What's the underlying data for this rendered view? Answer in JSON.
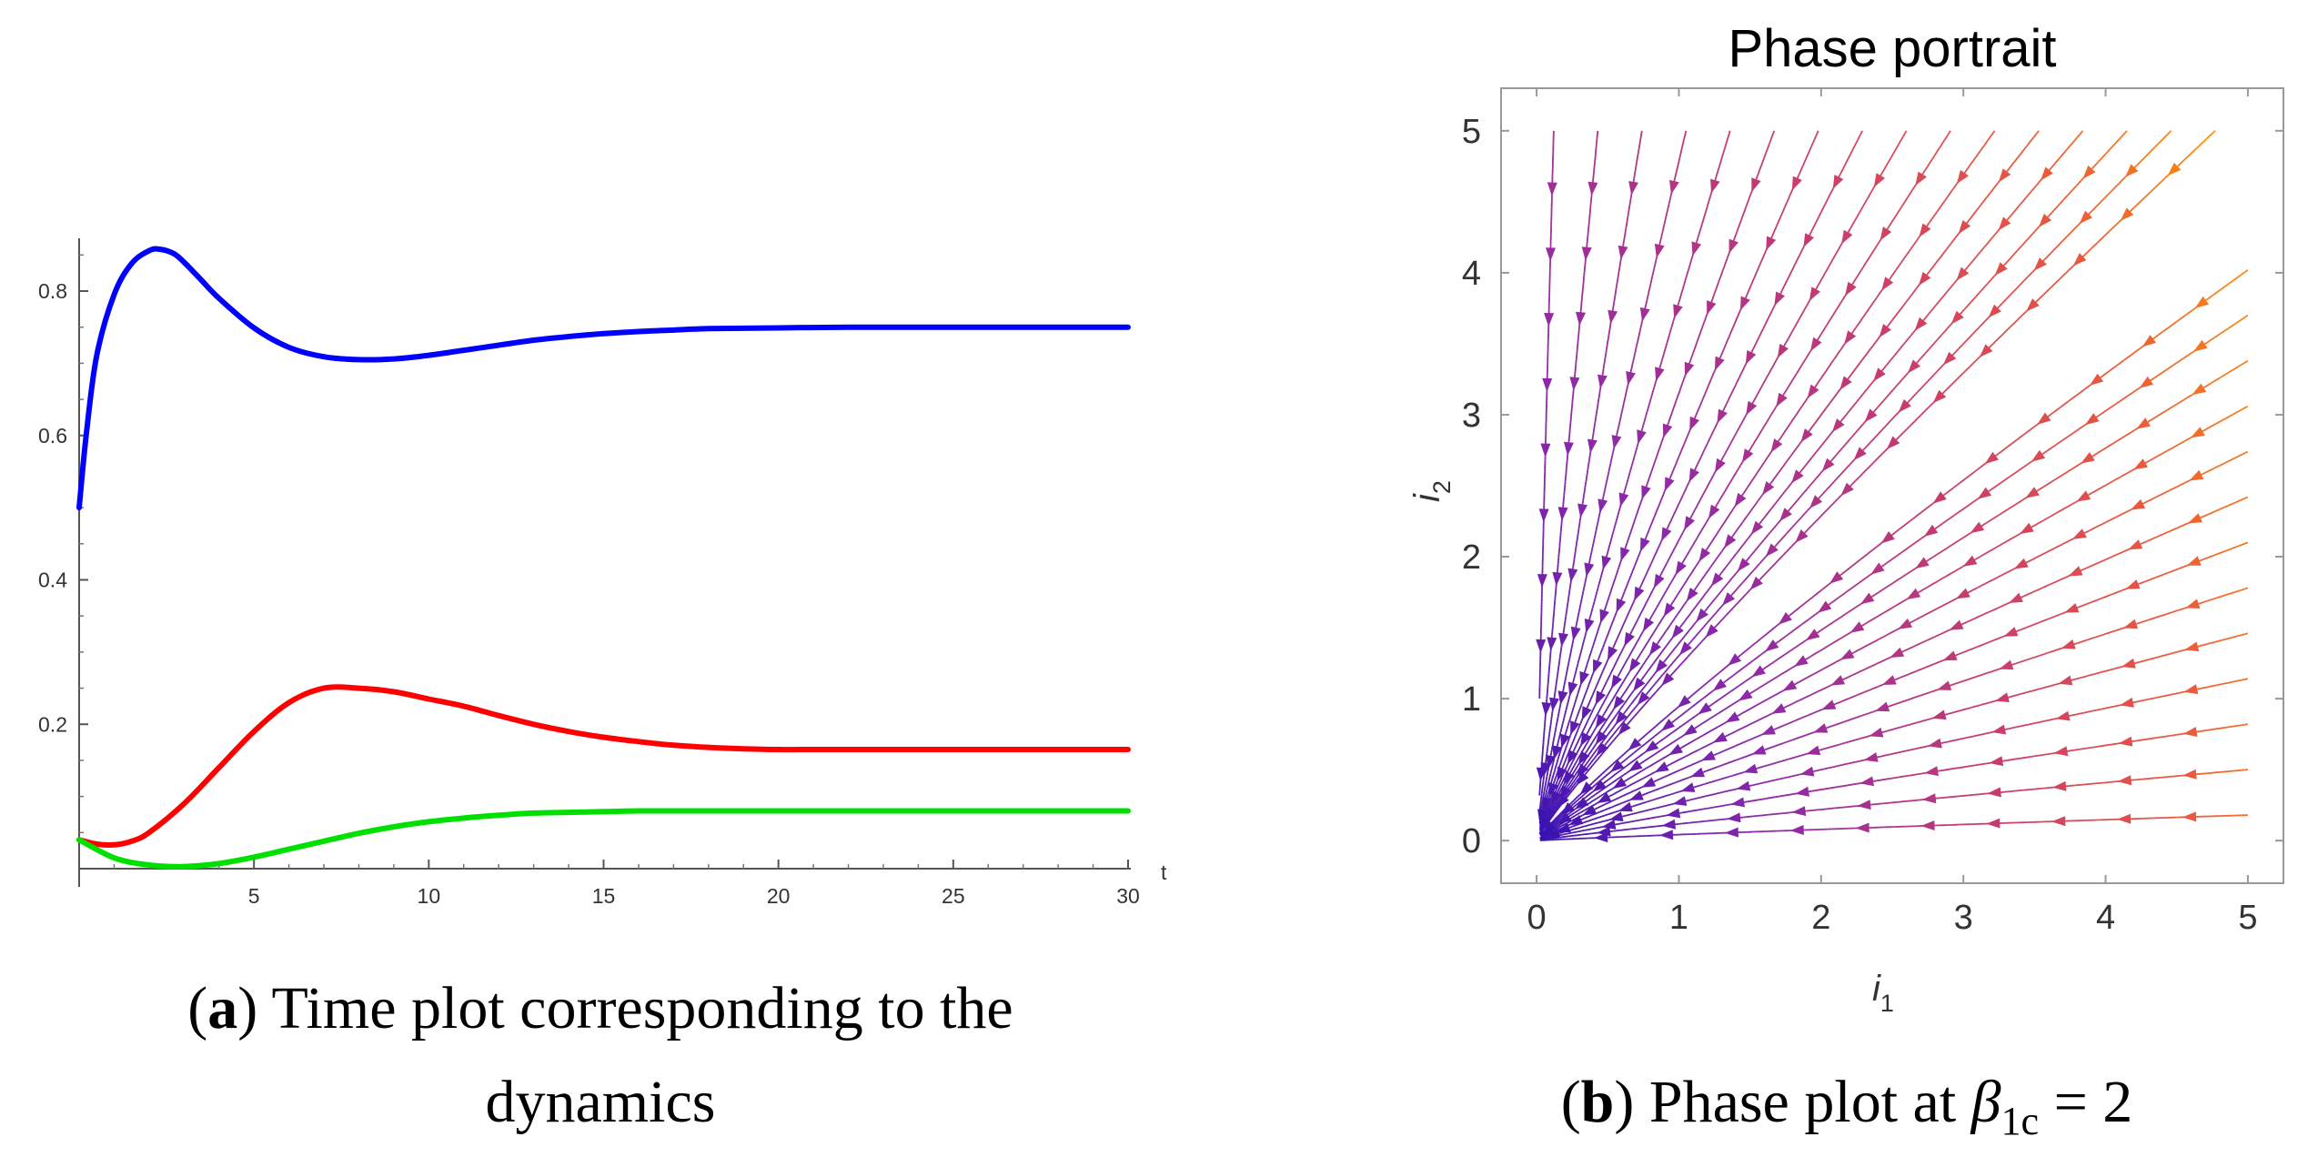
{
  "chart_data": [
    {
      "type": "line",
      "panel": "a",
      "title": "",
      "xlabel": "t",
      "ylabel": "",
      "xlim": [
        0,
        30
      ],
      "ylim": [
        0,
        0.9
      ],
      "xticks": [
        5,
        10,
        15,
        20,
        25,
        30
      ],
      "yticks": [
        0.2,
        0.4,
        0.6,
        0.8
      ],
      "series": [
        {
          "name": "blue",
          "color": "#0000ff",
          "x": [
            0,
            0.2,
            0.5,
            1,
            1.5,
            2,
            2.3,
            2.7,
            3,
            3.5,
            4,
            5,
            6,
            7,
            8,
            9,
            10,
            11,
            12,
            13,
            14,
            15,
            16,
            17,
            18,
            20,
            22,
            25,
            30
          ],
          "y": [
            0.5,
            0.6,
            0.71,
            0.795,
            0.838,
            0.856,
            0.858,
            0.852,
            0.84,
            0.815,
            0.79,
            0.749,
            0.722,
            0.709,
            0.705,
            0.706,
            0.711,
            0.718,
            0.725,
            0.732,
            0.737,
            0.741,
            0.744,
            0.746,
            0.748,
            0.749,
            0.75,
            0.75,
            0.75
          ]
        },
        {
          "name": "red",
          "color": "#ff0000",
          "x": [
            0,
            0.5,
            1,
            1.5,
            2,
            3,
            4,
            5,
            6,
            7,
            8,
            9,
            10,
            11,
            12,
            13,
            14,
            15,
            16,
            17,
            18,
            19,
            20,
            21,
            22,
            25,
            30
          ],
          "y": [
            0.04,
            0.034,
            0.033,
            0.038,
            0.05,
            0.09,
            0.14,
            0.19,
            0.23,
            0.25,
            0.25,
            0.245,
            0.235,
            0.225,
            0.212,
            0.2,
            0.19,
            0.182,
            0.176,
            0.171,
            0.168,
            0.166,
            0.165,
            0.165,
            0.165,
            0.165,
            0.165
          ]
        },
        {
          "name": "green",
          "color": "#00e000",
          "x": [
            0,
            1,
            2,
            3,
            4,
            5,
            6,
            7,
            8,
            9,
            10,
            11,
            12,
            13,
            14,
            15,
            16,
            17,
            18,
            19,
            20,
            21,
            22,
            25,
            30
          ],
          "y": [
            0.04,
            0.015,
            0.005,
            0.003,
            0.007,
            0.016,
            0.027,
            0.038,
            0.049,
            0.058,
            0.065,
            0.07,
            0.074,
            0.077,
            0.078,
            0.079,
            0.08,
            0.08,
            0.08,
            0.08,
            0.08,
            0.08,
            0.08,
            0.08,
            0.08
          ]
        }
      ]
    },
    {
      "type": "stream",
      "panel": "b",
      "title": "Phase portrait",
      "xlabel": "i1",
      "ylabel": "i2",
      "xlim": [
        -0.25,
        5.25
      ],
      "ylim": [
        -0.3,
        5.3
      ],
      "xticks": [
        0,
        1,
        2,
        3,
        4,
        5
      ],
      "yticks": [
        0,
        1,
        2,
        3,
        4,
        5
      ],
      "field": "di1/dt = -i1*(1 + 0.5*i1), di2/dt = -0.9*i2*(1 + 0.5*i1)",
      "color_low": "#2a0fb4",
      "color_high": "#ff9a00"
    }
  ],
  "captions": {
    "a_label": "a",
    "a_text_1": " Time plot corresponding to the",
    "a_text_2": "dynamics",
    "b_label": "b",
    "b_text": " Phase plot at ",
    "b_beta": "β",
    "b_sub": "1c",
    "b_eq": " = 2"
  },
  "panel_b_labels": {
    "x_main": "i",
    "x_sub": "1",
    "y_main": "i",
    "y_sub": "2"
  }
}
